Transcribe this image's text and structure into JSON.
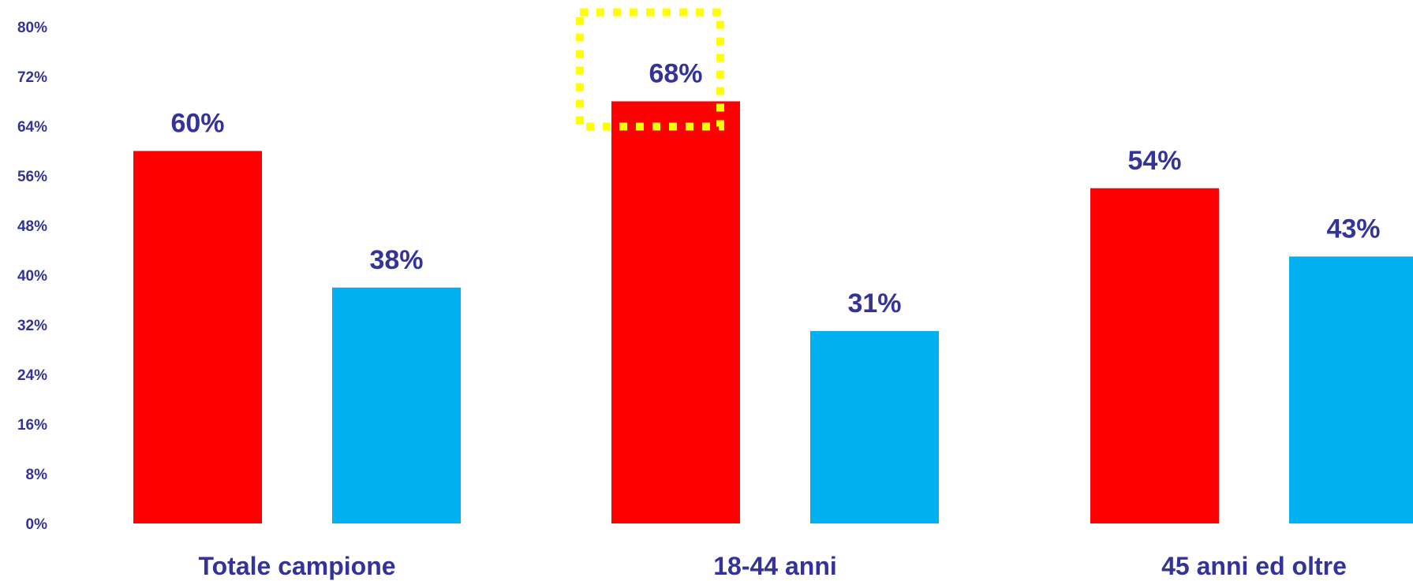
{
  "chart_data": {
    "type": "bar",
    "categories": [
      "Totale campione",
      "18-44 anni",
      "45 anni ed oltre"
    ],
    "series": [
      {
        "values": [
          60,
          68,
          54
        ],
        "color": "#ff0000"
      },
      {
        "values": [
          38,
          31,
          43
        ],
        "color": "#00b0f0"
      }
    ],
    "data_labels": [
      [
        "60%",
        "68%",
        "54%"
      ],
      [
        "38%",
        "31%",
        "43%"
      ]
    ],
    "ylim": [
      0,
      80
    ],
    "yticks": [
      0,
      8,
      16,
      24,
      32,
      40,
      48,
      56,
      64,
      72,
      80
    ],
    "ytick_labels": [
      "0%",
      "8%",
      "16%",
      "24%",
      "32%",
      "40%",
      "48%",
      "56%",
      "64%",
      "72%",
      "80%"
    ],
    "grid": false,
    "legend": "none",
    "highlight": {
      "series": 0,
      "category": 1,
      "style": "dotted",
      "color": "#ffff00"
    },
    "label_color": "#333399"
  }
}
